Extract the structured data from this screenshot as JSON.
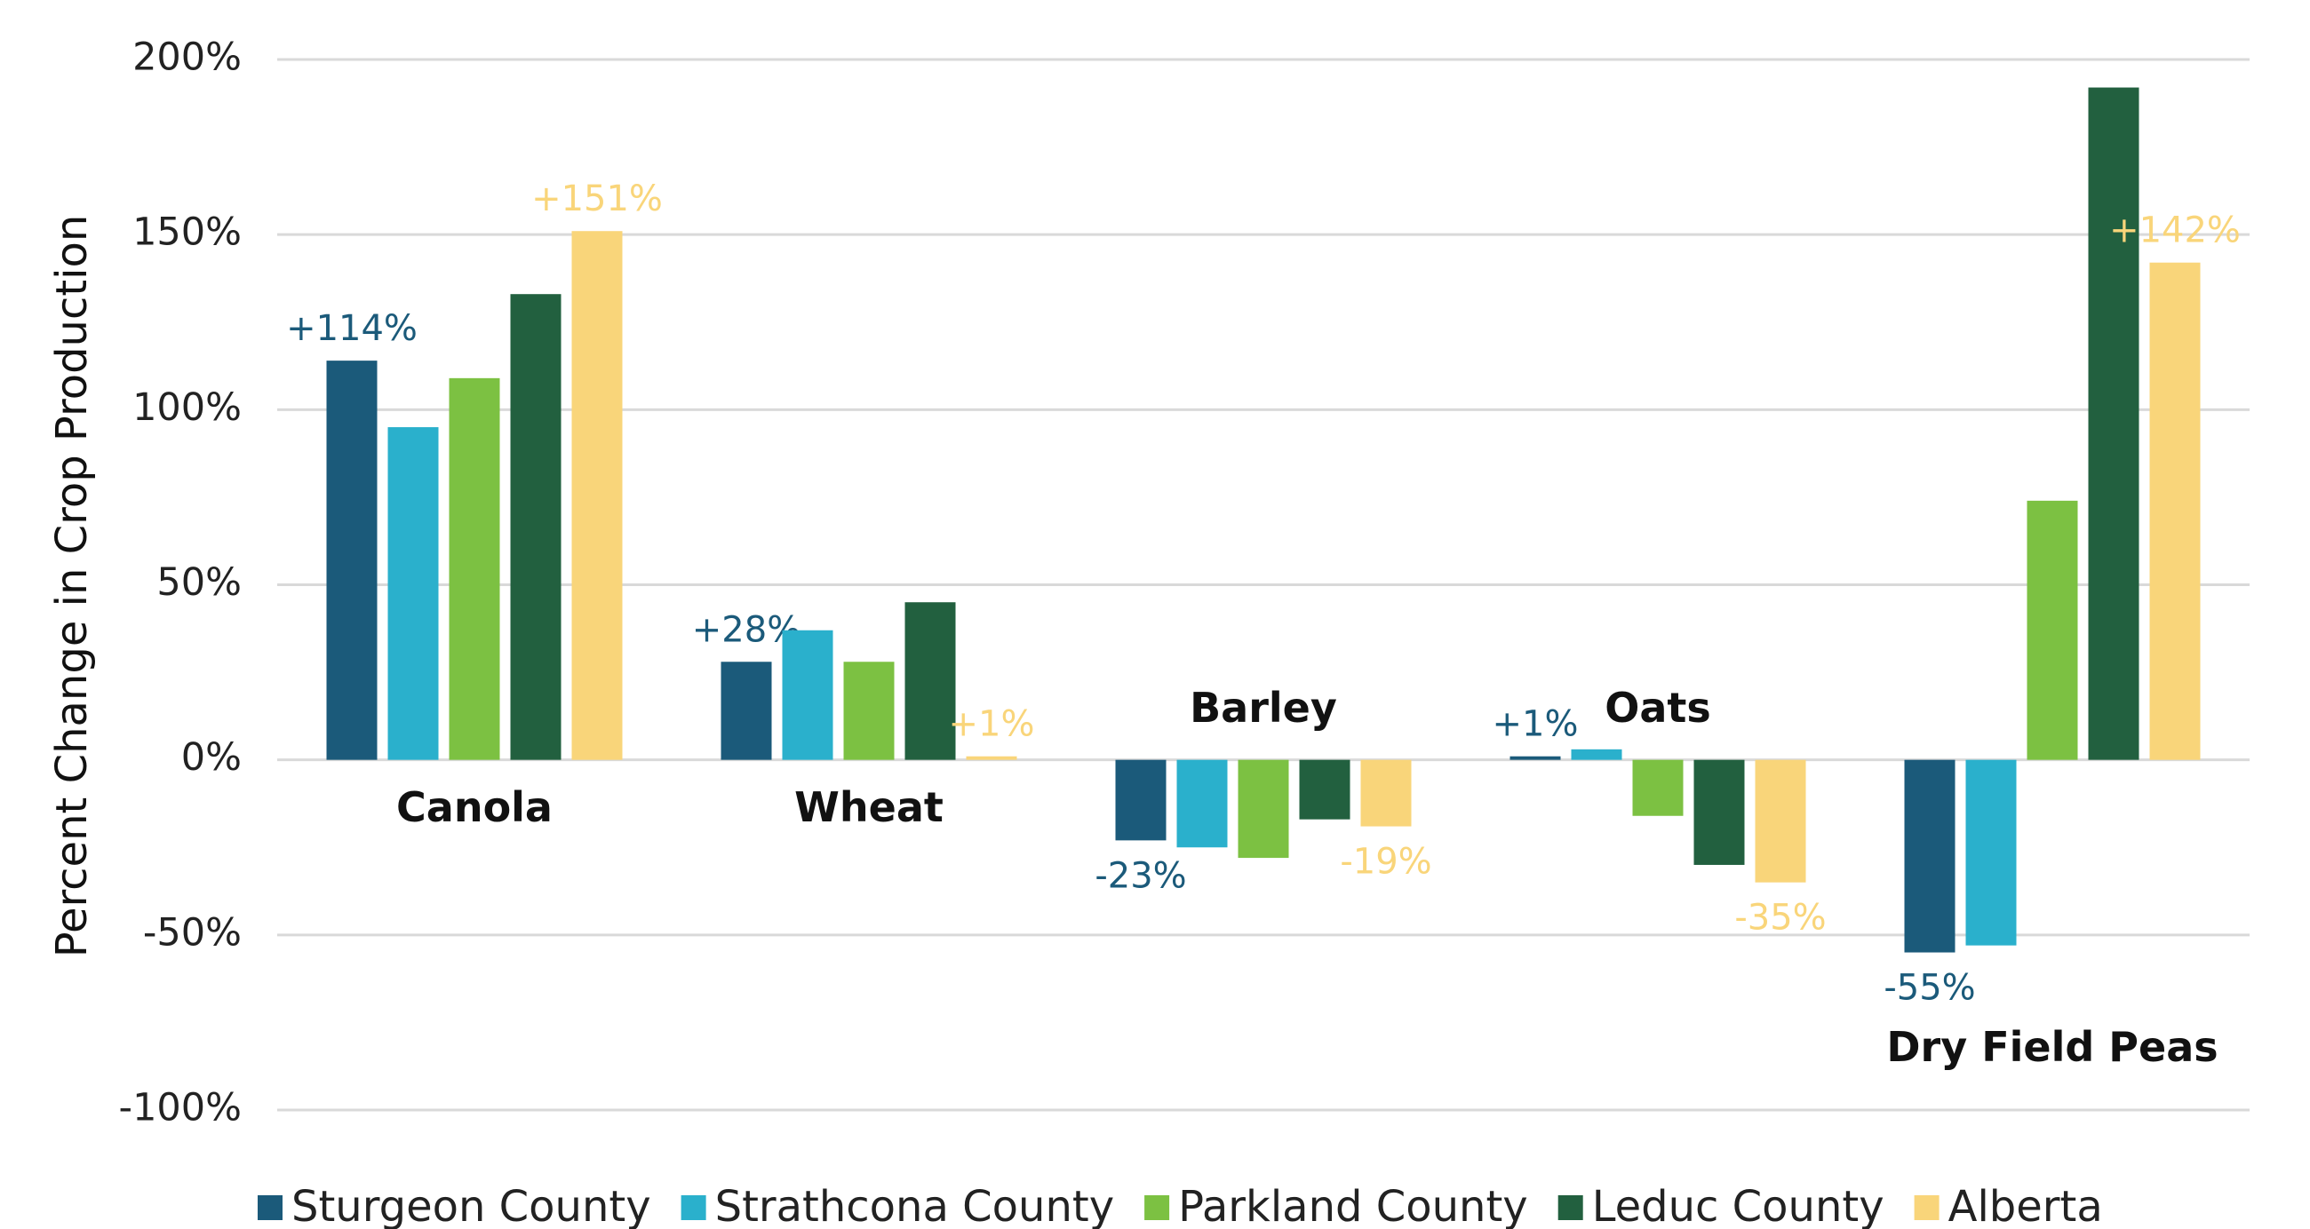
{
  "chart_data": {
    "type": "bar",
    "y_label": "Percent Change in Crop Production",
    "categories": [
      "Canola",
      "Wheat",
      "Barley",
      "Oats",
      "Dry Field Peas"
    ],
    "series": [
      {
        "name": "Sturgeon County",
        "color": "#1b5a7a",
        "values": [
          114,
          28,
          -23,
          1,
          -55
        ],
        "value_labels": [
          "+114%",
          "+28%",
          "-23%",
          "+1%",
          "-55%"
        ]
      },
      {
        "name": "Strathcona County",
        "color": "#2ab0cc",
        "values": [
          95,
          37,
          -25,
          3,
          -53
        ]
      },
      {
        "name": "Parkland County",
        "color": "#7cc142",
        "values": [
          109,
          28,
          -28,
          -16,
          74
        ]
      },
      {
        "name": "Leduc County",
        "color": "#22603f",
        "values": [
          133,
          45,
          -17,
          -30,
          192
        ]
      },
      {
        "name": "Alberta",
        "color": "#f9d57a",
        "values": [
          151,
          1,
          -19,
          -35,
          142
        ],
        "value_labels": [
          "+151%",
          "+1%",
          "-19%",
          "-35%",
          "+142%"
        ]
      }
    ],
    "ylim": [
      -100,
      200
    ],
    "yticks": [
      {
        "value": -100,
        "label": "-100%"
      },
      {
        "value": -50,
        "label": "-50%"
      },
      {
        "value": 0,
        "label": "0%"
      },
      {
        "value": 50,
        "label": "50%"
      },
      {
        "value": 100,
        "label": "100%"
      },
      {
        "value": 150,
        "label": "150%"
      },
      {
        "value": 200,
        "label": "200%"
      }
    ],
    "grid": true,
    "legend": "bottom"
  }
}
